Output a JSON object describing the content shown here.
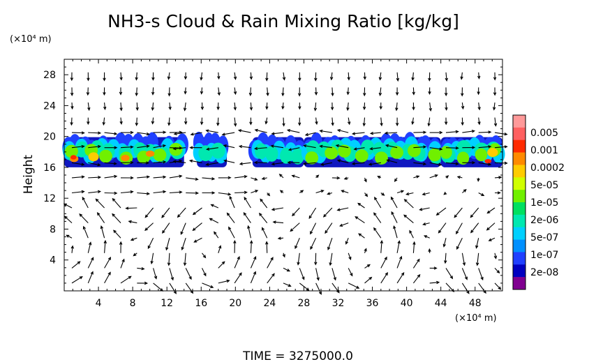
{
  "chart_data": {
    "type": "heatmap",
    "title": "NH3-s Cloud & Rain Mixing Ratio [kg/kg]",
    "y_unit": "(×10⁴ m)",
    "x_unit": "(×10⁴ m)",
    "ylabel": "Height",
    "xlabel": "",
    "footer": "TIME = 3275000.0",
    "xlim": [
      0,
      51.2
    ],
    "ylim": [
      0,
      30
    ],
    "x_ticks": [
      4,
      8,
      12,
      16,
      20,
      24,
      28,
      32,
      36,
      40,
      44,
      48
    ],
    "y_ticks": [
      4,
      8,
      12,
      16,
      20,
      24,
      28
    ],
    "colorbar": {
      "levels": [
        "0.005",
        "0.001",
        "0.0002",
        "5e-05",
        "1e-05",
        "2e-06",
        "5e-07",
        "1e-07",
        "2e-08"
      ],
      "colors": [
        "#ff9999",
        "#ff6060",
        "#ff2a00",
        "#ff8a00",
        "#ffcc00",
        "#d0ff00",
        "#70f000",
        "#00e060",
        "#00e8b0",
        "#00d0ff",
        "#0090ff",
        "#2040ff",
        "#0000c0",
        "#800090"
      ]
    },
    "cloud_layer": {
      "height_range": [
        16,
        20
      ],
      "segments": [
        {
          "x": [
            0,
            14
          ],
          "peak": "0.001"
        },
        {
          "x": [
            15.5,
            19
          ],
          "peak": "1e-05"
        },
        {
          "x": [
            22,
            28
          ],
          "peak": "1e-05"
        },
        {
          "x": [
            28,
            44
          ],
          "peak": "5e-05"
        },
        {
          "x": [
            44,
            51.2
          ],
          "peak": "0.001"
        }
      ]
    },
    "wind_vectors": "arrow field overlay (circulation cells in lower troposphere)"
  }
}
